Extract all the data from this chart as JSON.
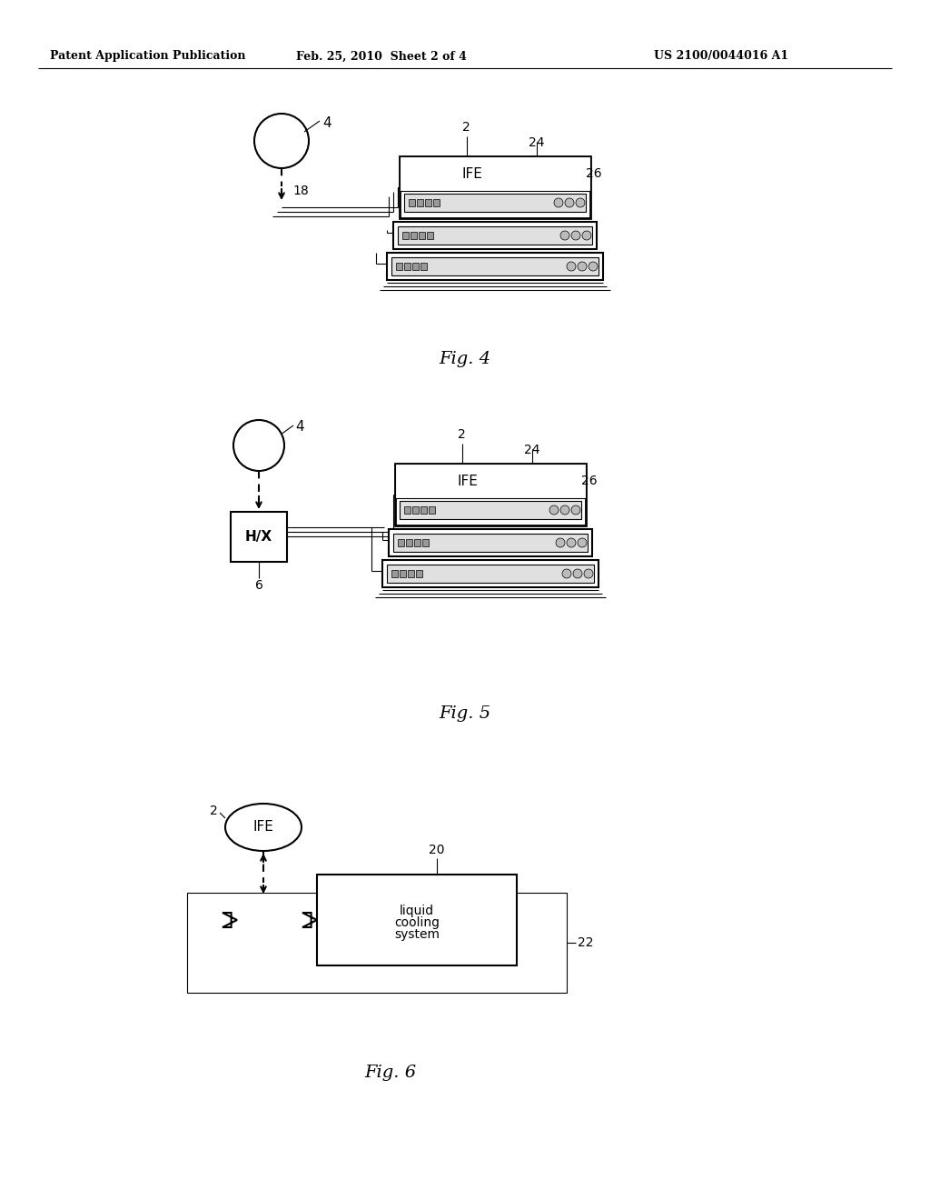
{
  "bg_color": "#ffffff",
  "black": "#000000",
  "header_left": "Patent Application Publication",
  "header_mid": "Feb. 25, 2010  Sheet 2 of 4",
  "header_right": "US 2100/0044016 A1",
  "fig4_label": "Fig. 4",
  "fig5_label": "Fig. 5",
  "fig6_label": "Fig. 6",
  "lw_main": 1.5,
  "lw_thin": 0.8
}
